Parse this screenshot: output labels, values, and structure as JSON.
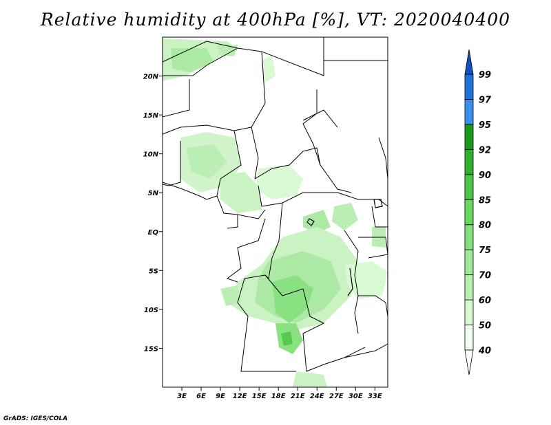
{
  "title": "Relative humidity at 400hPa [%], VT: 2020040400",
  "footer": "GrADS: IGES/COLA",
  "map": {
    "lon_labels": [
      "3E",
      "6E",
      "9E",
      "12E",
      "15E",
      "18E",
      "21E",
      "24E",
      "27E",
      "30E",
      "33E"
    ],
    "lon_values": [
      3,
      6,
      9,
      12,
      15,
      18,
      21,
      24,
      27,
      30,
      33
    ],
    "lat_labels": [
      "20N",
      "15N",
      "10N",
      "5N",
      "EQ",
      "5S",
      "10S",
      "15S"
    ],
    "lat_values": [
      20,
      15,
      10,
      5,
      0,
      -5,
      -10,
      -15
    ],
    "lon_range": [
      0,
      35
    ],
    "lat_range": [
      -20,
      25
    ]
  },
  "colorbar": {
    "labels": [
      "40",
      "50",
      "60",
      "70",
      "75",
      "80",
      "85",
      "90",
      "92",
      "95",
      "97",
      "99"
    ],
    "colors": [
      "#f0fff0",
      "#d8f8d2",
      "#b8f0b0",
      "#a0e89a",
      "#84e07c",
      "#68d860",
      "#4cc848",
      "#30b02c",
      "#1a9818",
      "#3a8fe8",
      "#2070d8",
      "#1050c0"
    ],
    "over_color": "#1050c0",
    "under_color": "#ffffff"
  }
}
